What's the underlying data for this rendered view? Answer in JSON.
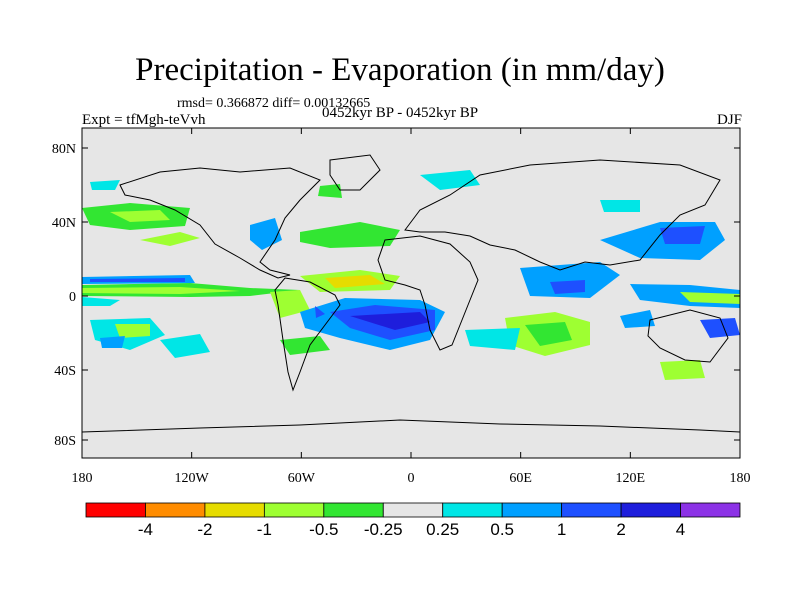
{
  "title": "Precipitation - Evaporation (in mm/day)",
  "stats": "rmsd= 0.366872 diff= 0.00132665",
  "experiment": "Expt = tfMgh-teVvh",
  "period": "0452kyr BP - 0452kyr BP",
  "season": "DJF",
  "map": {
    "background_color": "#e6e6e6",
    "lat_ticks": [
      "80N",
      "40N",
      "0",
      "40S",
      "80S"
    ],
    "lon_ticks": [
      "180",
      "120W",
      "60W",
      "0",
      "60E",
      "120E",
      "180"
    ]
  },
  "colorbar": {
    "colors": [
      "#ff0000",
      "#ff8c00",
      "#e6dc00",
      "#9eff32",
      "#32e632",
      "#e6e6e6",
      "#00e6e6",
      "#00a0ff",
      "#1e50ff",
      "#1e1edc",
      "#8c32e6"
    ],
    "labels": [
      "-4",
      "-2",
      "-1",
      "-0.5",
      "-0.25",
      "0.25",
      "0.5",
      "1",
      "2",
      "4"
    ]
  }
}
